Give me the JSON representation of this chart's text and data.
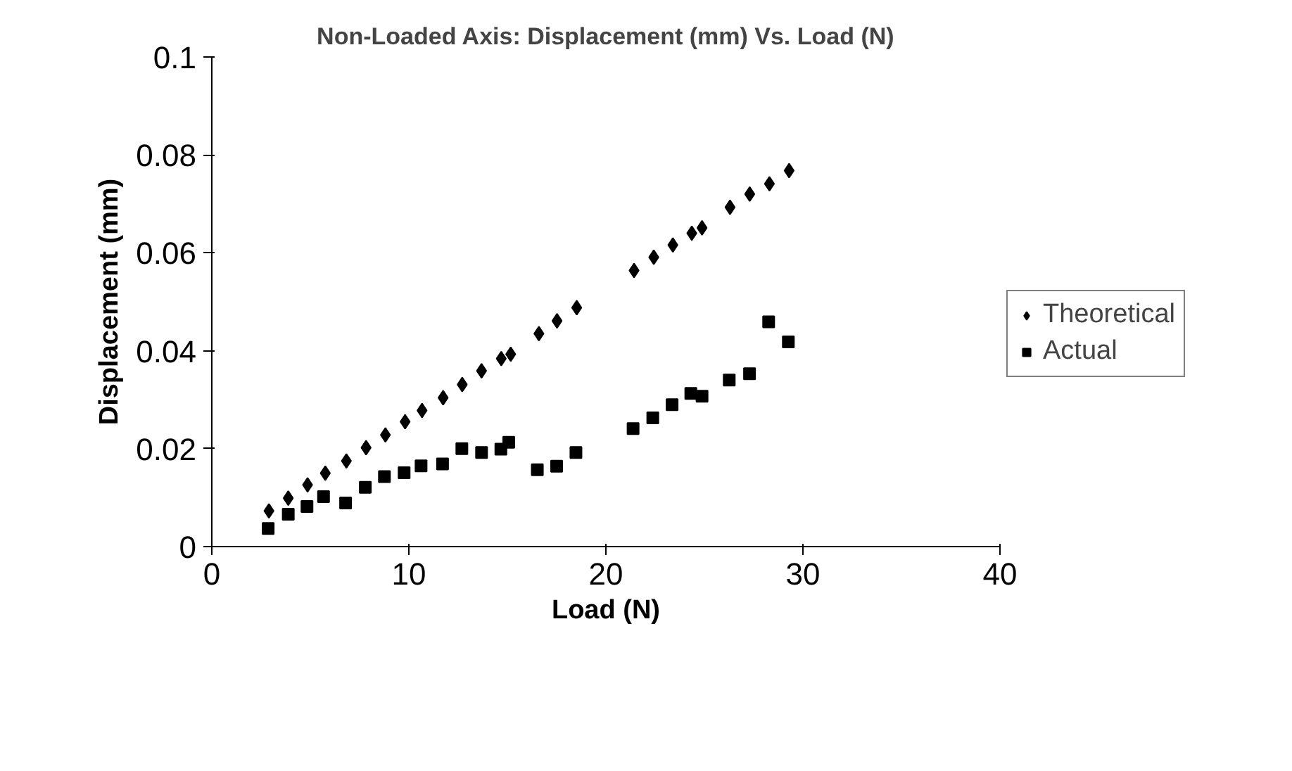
{
  "chart_data": {
    "type": "scatter",
    "title": "Non-Loaded Axis: Displacement (mm) Vs. Load (N)",
    "xlabel": "Load (N)",
    "ylabel": "Displacement (mm)",
    "xlim": [
      0,
      40
    ],
    "xticks": [
      0,
      10,
      20,
      30,
      40
    ],
    "ylim": [
      0,
      0.1
    ],
    "yticks": [
      0,
      0.02,
      0.04,
      0.06,
      0.08,
      0.1
    ],
    "grid": false,
    "legend": "right",
    "series": [
      {
        "name": "Theoretical",
        "color": "#000000",
        "marker": "diamond",
        "x": [
          2.9,
          3.88,
          4.86,
          5.76,
          6.83,
          7.83,
          8.81,
          9.81,
          10.67,
          11.74,
          12.71,
          13.69,
          14.69,
          15.17,
          16.6,
          17.52,
          18.52,
          21.43,
          22.43,
          23.4,
          24.36,
          24.88,
          26.3,
          27.3,
          28.3,
          29.3
        ],
        "values": [
          0.0073,
          0.0099,
          0.0126,
          0.015,
          0.0175,
          0.0202,
          0.0228,
          0.0255,
          0.0278,
          0.0304,
          0.0331,
          0.0359,
          0.0384,
          0.0393,
          0.0435,
          0.0461,
          0.0488,
          0.0564,
          0.0591,
          0.0616,
          0.064,
          0.0651,
          0.0693,
          0.072,
          0.0741,
          0.0768
        ]
      },
      {
        "name": "Actual",
        "color": "#000000",
        "marker": "square",
        "x": [
          2.86,
          3.88,
          4.83,
          5.67,
          6.79,
          7.79,
          8.76,
          9.76,
          10.62,
          11.71,
          12.69,
          13.69,
          14.67,
          15.07,
          16.52,
          17.5,
          18.48,
          21.38,
          22.38,
          23.36,
          24.31,
          24.88,
          26.26,
          27.29,
          28.26,
          29.26
        ],
        "values": [
          0.0037,
          0.0066,
          0.0082,
          0.0102,
          0.0089,
          0.0121,
          0.0143,
          0.0151,
          0.0165,
          0.0169,
          0.02,
          0.0192,
          0.0199,
          0.0213,
          0.0157,
          0.0164,
          0.0192,
          0.0241,
          0.0263,
          0.029,
          0.0313,
          0.0307,
          0.034,
          0.0353,
          0.0459,
          0.0418
        ]
      }
    ]
  }
}
